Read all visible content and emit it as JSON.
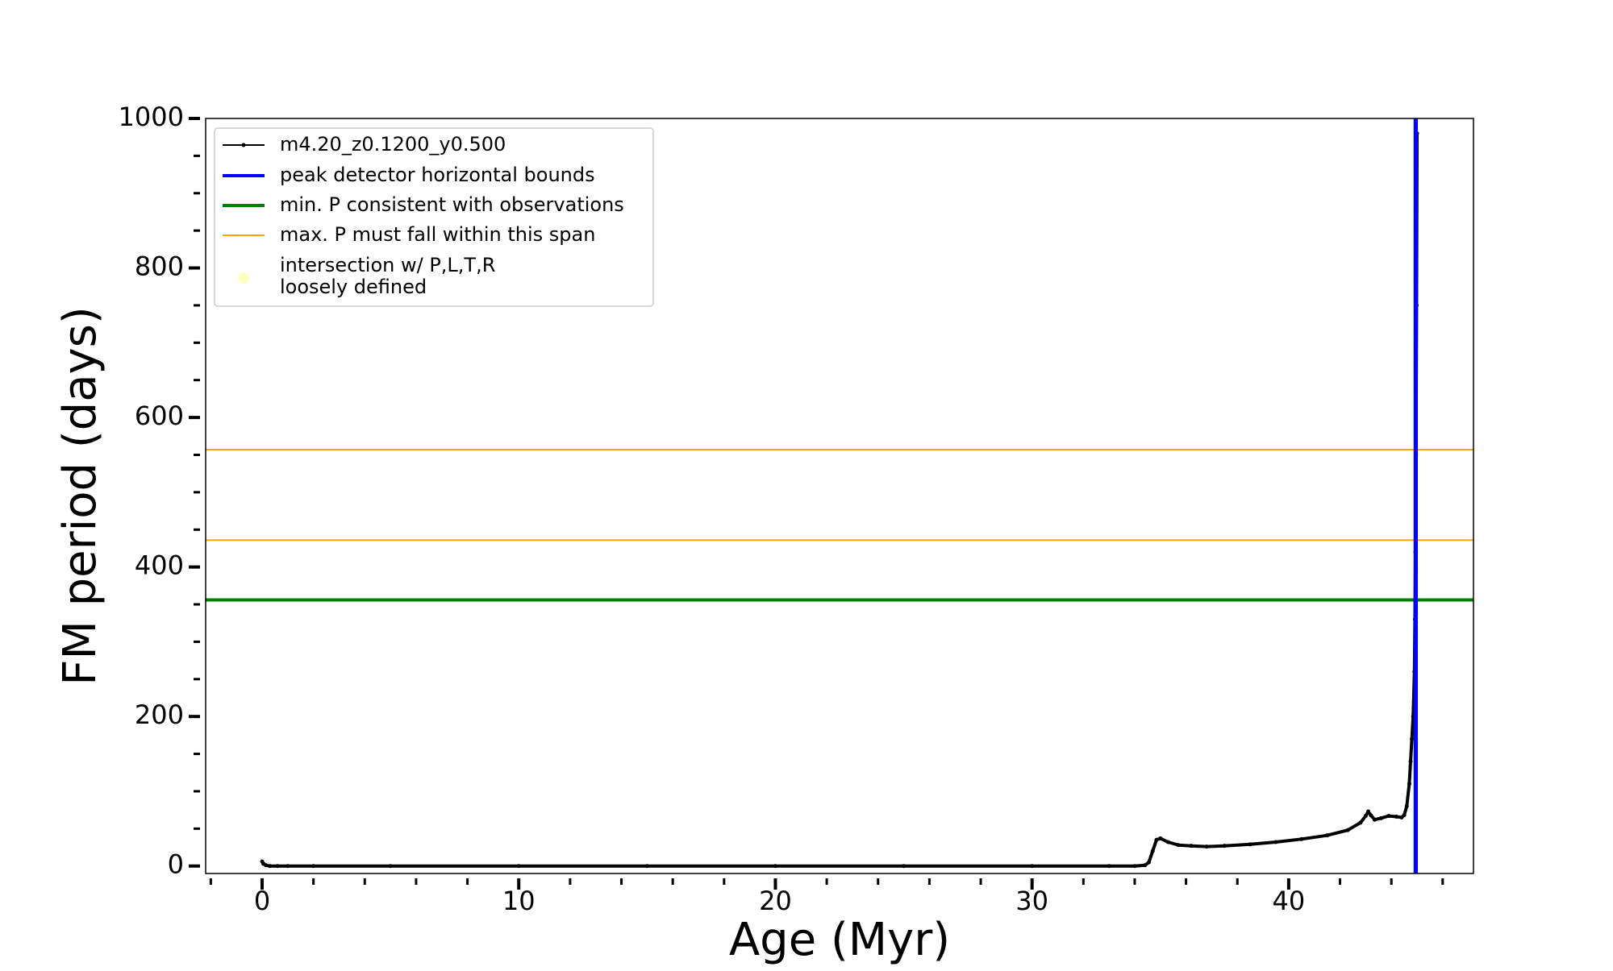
{
  "chart_data": {
    "type": "line",
    "title": "",
    "xlabel": "Age (Myr)",
    "ylabel": "FM period (days)",
    "xlim": [
      -2.2,
      47.2
    ],
    "ylim": [
      -10,
      1000
    ],
    "xticks": [
      0,
      10,
      20,
      30,
      40
    ],
    "yticks": [
      0,
      200,
      400,
      600,
      800,
      1000
    ],
    "grid": false,
    "legend_position": "top-left",
    "colors": {
      "track": "#000000",
      "peak_bounds": "#0000ff",
      "min_p": "#008000",
      "max_p_span": "#ffa500",
      "intersection": "#ffffc0"
    },
    "legend": [
      "m4.20_z0.1200_y0.500",
      "peak detector horizontal bounds",
      "min. P consistent with observations",
      "max. P must fall within this span",
      "intersection w/ P,L,T,R",
      "loosely defined"
    ],
    "series": [
      {
        "name": "m4.20_z0.1200_y0.500",
        "x": [
          0.0,
          0.05,
          0.15,
          0.3,
          0.6,
          1.0,
          2.0,
          5.0,
          10.0,
          15.0,
          20.0,
          25.0,
          30.0,
          33.0,
          34.0,
          34.4,
          34.55,
          34.7,
          34.85,
          35.0,
          35.3,
          35.7,
          36.2,
          36.8,
          37.5,
          38.5,
          39.5,
          40.5,
          41.5,
          42.3,
          42.8,
          43.0,
          43.1,
          43.2,
          43.35,
          43.6,
          43.9,
          44.2,
          44.4,
          44.5,
          44.6,
          44.7,
          44.75,
          44.8,
          44.85,
          44.9,
          44.92,
          44.94,
          44.96,
          44.98,
          45.0
        ],
        "y": [
          6,
          3,
          1,
          0,
          0,
          0,
          0,
          0,
          0,
          0,
          0,
          0,
          0,
          0,
          0,
          1,
          5,
          20,
          35,
          37,
          32,
          28,
          27,
          26,
          27,
          29,
          32,
          36,
          41,
          48,
          58,
          67,
          73,
          68,
          62,
          64,
          67,
          66,
          65,
          68,
          80,
          110,
          140,
          170,
          200,
          260,
          330,
          420,
          550,
          750,
          980
        ]
      }
    ],
    "peak_detector_bounds_x": [
      44.93,
      44.97
    ],
    "min_p_consistent": 356,
    "max_p_span": [
      436,
      557
    ],
    "intersection_region": {
      "x": [
        44.8,
        45.1
      ],
      "y": [
        356,
        557
      ]
    }
  }
}
